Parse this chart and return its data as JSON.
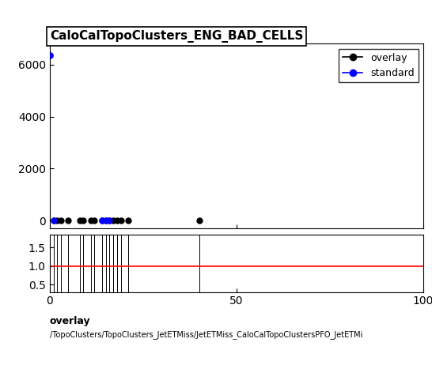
{
  "title": "CaloCalTopoClusters_ENG_BAD_CELLS",
  "text_line1": "overlay",
  "text_line2": "/TopoClusters/TopoClusters_JetETMiss/JetETMiss_CaloCalTopoClustersPFO_JetETMi",
  "xlim": [
    0,
    100
  ],
  "main_ylim": [
    -300,
    6800
  ],
  "ratio_ylim": [
    0.3,
    1.85
  ],
  "ratio_yticks": [
    0.5,
    1.0,
    1.5
  ],
  "main_yticks": [
    0,
    2000,
    4000,
    6000
  ],
  "xticks": [
    0,
    50,
    100
  ],
  "overlay_x": [
    0,
    1,
    2,
    3,
    5,
    8,
    9,
    11,
    12,
    14,
    15,
    16,
    17,
    18,
    19,
    21,
    40
  ],
  "overlay_y": [
    6350,
    5,
    5,
    3,
    3,
    5,
    3,
    8,
    5,
    5,
    3,
    3,
    5,
    3,
    3,
    5,
    5
  ],
  "standard_x": [
    0,
    1,
    14,
    15,
    16
  ],
  "standard_y": [
    6350,
    5,
    5,
    3,
    3
  ],
  "ratio_vlines_x": [
    0,
    1,
    2,
    3,
    5,
    8,
    9,
    11,
    12,
    14,
    15,
    16,
    17,
    18,
    19,
    21,
    40
  ],
  "overlay_color": "#000000",
  "standard_color": "#0000ff",
  "ratio_line_color": "#ff0000",
  "background_color": "#ffffff",
  "title_fontsize": 11,
  "legend_fontsize": 9,
  "marker_size": 5,
  "marker_size_legend": 6
}
